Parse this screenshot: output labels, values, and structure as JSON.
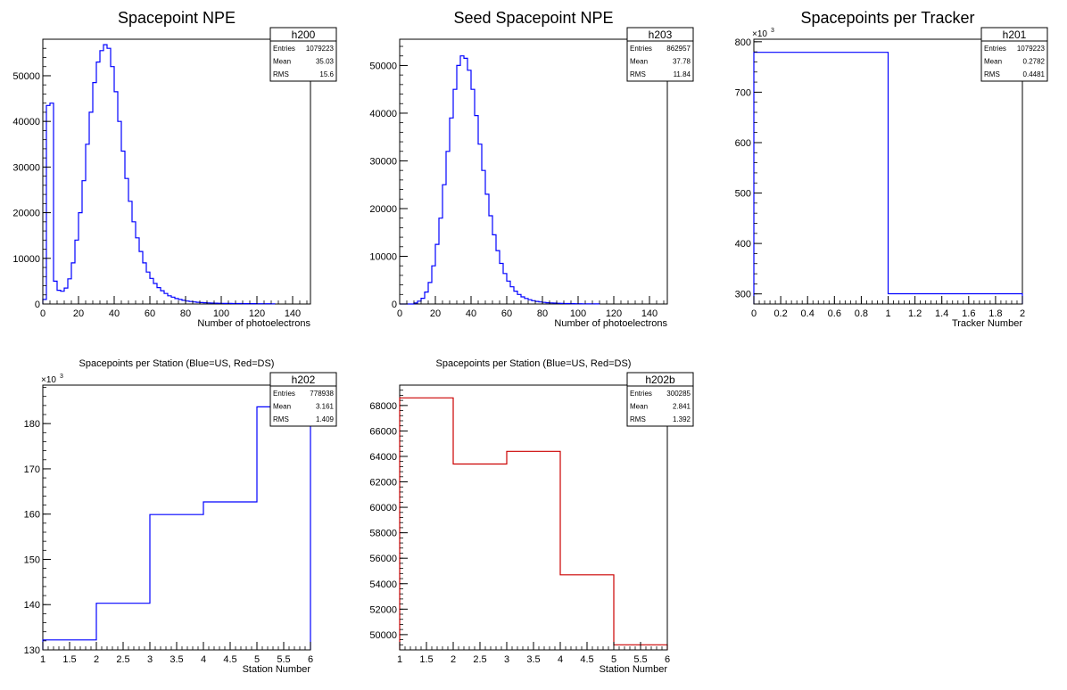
{
  "colors": {
    "us": "#0000ff",
    "ds": "#cc0000",
    "axis": "#000000"
  },
  "chart_data": [
    {
      "type": "bar",
      "title": "Spacepoint NPE",
      "xlabel": "Number of photoelectrons",
      "ylabel": "",
      "xlim": [
        0,
        150
      ],
      "ylim": [
        0,
        58000
      ],
      "xticks": [
        0,
        20,
        40,
        60,
        80,
        100,
        120,
        140
      ],
      "yticks": [
        0,
        10000,
        20000,
        30000,
        40000,
        50000
      ],
      "y_exponent": "",
      "color": "#0000ff",
      "bin_edges": [
        0,
        2,
        4,
        6,
        8,
        10,
        12,
        14,
        16,
        18,
        20,
        22,
        24,
        26,
        28,
        30,
        32,
        34,
        36,
        38,
        40,
        42,
        44,
        46,
        48,
        50,
        52,
        54,
        56,
        58,
        60,
        62,
        64,
        66,
        68,
        70,
        72,
        74,
        76,
        78,
        80,
        82,
        84,
        86,
        88,
        90,
        92,
        94,
        96,
        98,
        100,
        102,
        104,
        106,
        108,
        110,
        112,
        114,
        116,
        118,
        120,
        122,
        124,
        126,
        128,
        130
      ],
      "values": [
        1000,
        43500,
        44000,
        5000,
        3000,
        2800,
        3500,
        5500,
        9000,
        14000,
        20000,
        27000,
        35000,
        42000,
        48500,
        53000,
        55500,
        56800,
        56000,
        52000,
        46500,
        40000,
        33500,
        27500,
        22500,
        18000,
        14500,
        11500,
        9000,
        7000,
        5600,
        4500,
        3600,
        2900,
        2300,
        1800,
        1500,
        1200,
        1000,
        800,
        650,
        550,
        450,
        380,
        320,
        270,
        230,
        200,
        170,
        150,
        130,
        120,
        110,
        100,
        95,
        90,
        85,
        80,
        75,
        70,
        65,
        60,
        55,
        50,
        45
      ],
      "stats": {
        "name": "h200",
        "entries": "1079223",
        "mean": "35.03",
        "rms": "15.6"
      },
      "stats_labels": {
        "entries": "Entries",
        "mean": "Mean",
        "rms": "RMS"
      }
    },
    {
      "type": "bar",
      "title": "Seed Spacepoint NPE",
      "xlabel": "Number of photoelectrons",
      "ylabel": "",
      "xlim": [
        0,
        150
      ],
      "ylim": [
        0,
        55500
      ],
      "xticks": [
        0,
        20,
        40,
        60,
        80,
        100,
        120,
        140
      ],
      "yticks": [
        0,
        10000,
        20000,
        30000,
        40000,
        50000
      ],
      "y_exponent": "",
      "color": "#0000ff",
      "bin_edges": [
        0,
        2,
        4,
        6,
        8,
        10,
        12,
        14,
        16,
        18,
        20,
        22,
        24,
        26,
        28,
        30,
        32,
        34,
        36,
        38,
        40,
        42,
        44,
        46,
        48,
        50,
        52,
        54,
        56,
        58,
        60,
        62,
        64,
        66,
        68,
        70,
        72,
        74,
        76,
        78,
        80,
        82,
        84,
        86,
        88,
        90,
        92,
        94,
        96,
        98,
        100,
        102,
        104,
        106,
        108,
        110,
        112
      ],
      "values": [
        0,
        0,
        0,
        0,
        200,
        600,
        1200,
        2500,
        4500,
        8000,
        12500,
        18000,
        25000,
        32000,
        39000,
        45000,
        50000,
        52000,
        51500,
        49000,
        45000,
        39500,
        33500,
        28000,
        23000,
        18500,
        14500,
        11200,
        8500,
        6400,
        4800,
        3600,
        2700,
        2000,
        1500,
        1150,
        900,
        700,
        550,
        430,
        340,
        270,
        220,
        180,
        150,
        120,
        100,
        85,
        70,
        60,
        50,
        45,
        40,
        35,
        30,
        25
      ],
      "stats": {
        "name": "h203",
        "entries": "862957",
        "mean": "37.78",
        "rms": "11.84"
      },
      "stats_labels": {
        "entries": "Entries",
        "mean": "Mean",
        "rms": "RMS"
      }
    },
    {
      "type": "bar",
      "title": "Spacepoints per Tracker",
      "xlabel": "Tracker Number",
      "ylabel": "",
      "xlim": [
        0,
        2
      ],
      "ylim": [
        280,
        805
      ],
      "xticks": [
        0,
        0.2,
        0.4,
        0.6,
        0.8,
        1,
        1.2,
        1.4,
        1.6,
        1.8,
        2
      ],
      "yticks": [
        300,
        400,
        500,
        600,
        700,
        800
      ],
      "y_exponent": "×10",
      "y_exponent_power": "3",
      "color": "#0000ff",
      "bin_edges": [
        0,
        1,
        2
      ],
      "values": [
        778.938,
        300.285
      ],
      "stats": {
        "name": "h201",
        "entries": "1079223",
        "mean": "0.2782",
        "rms": "0.4481"
      },
      "stats_labels": {
        "entries": "Entries",
        "mean": "Mean",
        "rms": "RMS"
      }
    },
    {
      "type": "bar",
      "title": "Spacepoints per Station (Blue=US, Red=DS)",
      "xlabel": "Station Number",
      "ylabel": "",
      "xlim": [
        1,
        6
      ],
      "ylim": [
        130,
        188.5
      ],
      "xticks": [
        1,
        1.5,
        2,
        2.5,
        3,
        3.5,
        4,
        4.5,
        5,
        5.5,
        6
      ],
      "yticks": [
        130,
        140,
        150,
        160,
        170,
        180
      ],
      "y_exponent": "×10",
      "y_exponent_power": "3",
      "color": "#0000ff",
      "bin_edges": [
        1,
        2,
        3,
        4,
        5,
        6
      ],
      "values": [
        132.2,
        140.3,
        159.9,
        162.7,
        183.7
      ],
      "stats": {
        "name": "h202",
        "entries": "778938",
        "mean": "3.161",
        "rms": "1.409"
      },
      "stats_labels": {
        "entries": "Entries",
        "mean": "Mean",
        "rms": "RMS"
      }
    },
    {
      "type": "bar",
      "title": "Spacepoints per Station (Blue=US, Red=DS)",
      "xlabel": "Station Number",
      "ylabel": "",
      "xlim": [
        1,
        6
      ],
      "ylim": [
        48800,
        69600
      ],
      "xticks": [
        1,
        1.5,
        2,
        2.5,
        3,
        3.5,
        4,
        4.5,
        5,
        5.5,
        6
      ],
      "yticks": [
        50000,
        52000,
        54000,
        56000,
        58000,
        60000,
        62000,
        64000,
        66000,
        68000
      ],
      "y_exponent": "",
      "color": "#cc0000",
      "bin_edges": [
        1,
        2,
        3,
        4,
        5,
        6
      ],
      "values": [
        68600,
        63400,
        64400,
        54700,
        49200
      ],
      "stats": {
        "name": "h202b",
        "entries": "300285",
        "mean": "2.841",
        "rms": "1.392"
      },
      "stats_labels": {
        "entries": "Entries",
        "mean": "Mean",
        "rms": "RMS"
      }
    }
  ]
}
